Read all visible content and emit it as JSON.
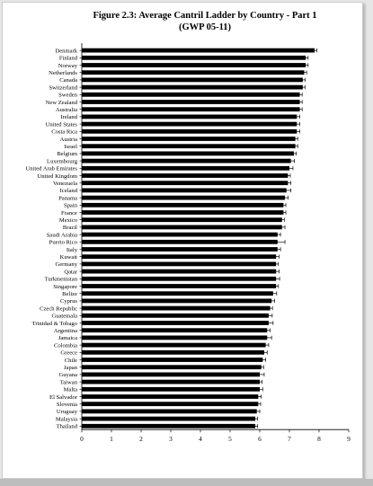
{
  "chart_data": {
    "type": "bar",
    "orientation": "horizontal",
    "title": "Figure 2.3: Average Cantril Ladder by Country - Part 1",
    "subtitle": "(GWP 05-11)",
    "xlabel": "",
    "ylabel": "",
    "xlim": [
      0,
      9
    ],
    "xticks": [
      "0",
      "1",
      "2",
      "3",
      "4",
      "5",
      "6",
      "7",
      "8",
      "9"
    ],
    "grid": false,
    "error_bars": true,
    "bar_color": "#000000",
    "categories": [
      "Denmark",
      "Finland",
      "Norway",
      "Netherlands",
      "Canada",
      "Switzerland",
      "Sweden",
      "New Zealand",
      "Australia",
      "Ireland",
      "United States",
      "Costa Rica",
      "Austria",
      "Israel",
      "Belgium",
      "Luxembourg",
      "United Arab Emirates",
      "United Kingdom",
      "Venezuela",
      "Iceland",
      "Panama",
      "Spain",
      "France",
      "Mexico",
      "Brazil",
      "Saudi Arabia",
      "Puerto Rico",
      "Italy",
      "Kuwait",
      "Germany",
      "Qatar",
      "Turkmenistan",
      "Singapore",
      "Belize",
      "Cyprus",
      "Czech Republic",
      "Guatemala",
      "Trinidad & Tobago",
      "Argentina",
      "Jamaica",
      "Colombia",
      "Greece",
      "Chile",
      "Japan",
      "Guyana",
      "Taiwan",
      "Malta",
      "El Salvador",
      "Slovenia",
      "Uruguay",
      "Malaysia",
      "Thailand"
    ],
    "values": [
      7.85,
      7.55,
      7.55,
      7.5,
      7.45,
      7.45,
      7.35,
      7.35,
      7.35,
      7.25,
      7.25,
      7.25,
      7.2,
      7.2,
      7.15,
      7.05,
      7.0,
      6.95,
      6.95,
      6.9,
      6.85,
      6.8,
      6.8,
      6.75,
      6.75,
      6.6,
      6.6,
      6.6,
      6.55,
      6.55,
      6.55,
      6.55,
      6.55,
      6.45,
      6.4,
      6.35,
      6.3,
      6.3,
      6.25,
      6.25,
      6.2,
      6.15,
      6.1,
      6.05,
      6.0,
      6.0,
      6.0,
      5.95,
      5.95,
      5.9,
      5.85,
      5.85
    ],
    "errors": [
      0.08,
      0.08,
      0.08,
      0.08,
      0.08,
      0.08,
      0.08,
      0.08,
      0.08,
      0.1,
      0.1,
      0.1,
      0.08,
      0.08,
      0.08,
      0.12,
      0.12,
      0.08,
      0.1,
      0.15,
      0.1,
      0.08,
      0.08,
      0.08,
      0.1,
      0.1,
      0.25,
      0.1,
      0.1,
      0.08,
      0.1,
      0.12,
      0.08,
      0.12,
      0.1,
      0.08,
      0.12,
      0.15,
      0.1,
      0.15,
      0.1,
      0.1,
      0.1,
      0.08,
      0.15,
      0.08,
      0.1,
      0.1,
      0.08,
      0.1,
      0.08,
      0.08
    ]
  }
}
